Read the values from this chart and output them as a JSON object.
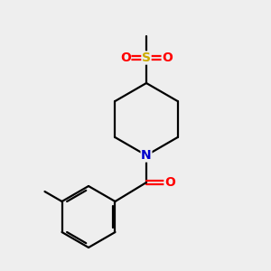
{
  "background_color": "#eeeeee",
  "atom_colors": {
    "C": "#000000",
    "N": "#0000cc",
    "O": "#ff0000",
    "S": "#ccaa00"
  },
  "line_color": "#000000",
  "line_width": 1.6,
  "figsize": [
    3.0,
    3.0
  ],
  "dpi": 100
}
